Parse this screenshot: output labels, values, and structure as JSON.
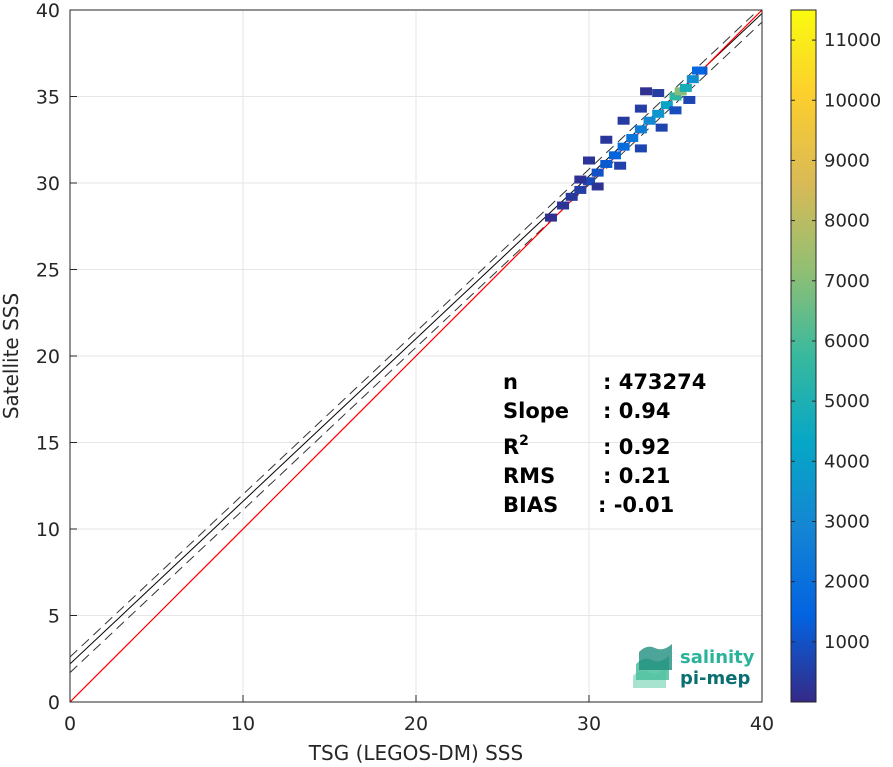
{
  "chart_data": {
    "type": "heatmap",
    "xlabel": "TSG (LEGOS-DM) SSS",
    "ylabel": "Satellite SSS",
    "xlim": [
      0,
      40
    ],
    "ylim": [
      0,
      40
    ],
    "xticks": [
      "0",
      "10",
      "20",
      "30",
      "40"
    ],
    "yticks": [
      "0",
      "5",
      "10",
      "15",
      "20",
      "25",
      "30",
      "35",
      "40"
    ],
    "grid": true,
    "colorbar": {
      "ticks": [
        "1000",
        "2000",
        "3000",
        "4000",
        "5000",
        "6000",
        "7000",
        "8000",
        "9000",
        "10000",
        "11000"
      ],
      "range": [
        0,
        11500
      ],
      "colormap": "parula"
    },
    "identity_line": {
      "color": "#ff0000",
      "x": [
        0,
        40
      ],
      "y": [
        0,
        40
      ]
    },
    "regression_line": {
      "color": "#000000",
      "slope": 0.94,
      "intercept": 2.2
    },
    "confidence_lines": [
      {
        "style": "dashed",
        "slope": 0.94,
        "intercept": 2.6
      },
      {
        "style": "dashed",
        "slope": 0.94,
        "intercept": 1.7
      }
    ],
    "density_cells": [
      {
        "x": 27.8,
        "y": 28.0,
        "v": 150
      },
      {
        "x": 28.5,
        "y": 28.7,
        "v": 250
      },
      {
        "x": 29.0,
        "y": 29.2,
        "v": 350
      },
      {
        "x": 29.5,
        "y": 29.6,
        "v": 500
      },
      {
        "x": 30.0,
        "y": 30.1,
        "v": 800
      },
      {
        "x": 30.5,
        "y": 30.6,
        "v": 1000
      },
      {
        "x": 31.0,
        "y": 31.1,
        "v": 1200
      },
      {
        "x": 31.5,
        "y": 31.6,
        "v": 1500
      },
      {
        "x": 32.0,
        "y": 32.1,
        "v": 1800
      },
      {
        "x": 32.5,
        "y": 32.6,
        "v": 2200
      },
      {
        "x": 33.0,
        "y": 33.1,
        "v": 2600
      },
      {
        "x": 33.5,
        "y": 33.6,
        "v": 3000
      },
      {
        "x": 34.0,
        "y": 34.0,
        "v": 3600
      },
      {
        "x": 34.5,
        "y": 34.5,
        "v": 4200
      },
      {
        "x": 35.0,
        "y": 35.0,
        "v": 5500
      },
      {
        "x": 35.3,
        "y": 35.3,
        "v": 7000
      },
      {
        "x": 35.6,
        "y": 35.5,
        "v": 4800
      },
      {
        "x": 36.0,
        "y": 36.0,
        "v": 3200
      },
      {
        "x": 36.5,
        "y": 36.5,
        "v": 1200
      },
      {
        "x": 31.0,
        "y": 32.5,
        "v": 300
      },
      {
        "x": 32.0,
        "y": 33.6,
        "v": 400
      },
      {
        "x": 33.0,
        "y": 34.3,
        "v": 500
      },
      {
        "x": 31.8,
        "y": 31.0,
        "v": 600
      },
      {
        "x": 33.0,
        "y": 32.0,
        "v": 700
      },
      {
        "x": 34.2,
        "y": 33.2,
        "v": 650
      },
      {
        "x": 35.0,
        "y": 34.2,
        "v": 900
      },
      {
        "x": 35.8,
        "y": 34.8,
        "v": 700
      },
      {
        "x": 34.0,
        "y": 35.2,
        "v": 450
      },
      {
        "x": 30.0,
        "y": 31.3,
        "v": 250
      },
      {
        "x": 30.5,
        "y": 29.8,
        "v": 200
      },
      {
        "x": 29.5,
        "y": 30.2,
        "v": 180
      },
      {
        "x": 33.3,
        "y": 35.3,
        "v": 150
      },
      {
        "x": 36.3,
        "y": 36.5,
        "v": 1600
      }
    ]
  },
  "stats": [
    {
      "label": "n",
      "value": ": 473274"
    },
    {
      "label": "Slope",
      "value": ": 0.94"
    },
    {
      "label": "R",
      "sup": "2",
      "value": ": 0.92"
    },
    {
      "label": "RMS",
      "value": ": 0.21"
    },
    {
      "label": "BIAS",
      "value": ": -0.01"
    }
  ],
  "logo": {
    "line1": "salinity",
    "line2": "pi-mep"
  }
}
